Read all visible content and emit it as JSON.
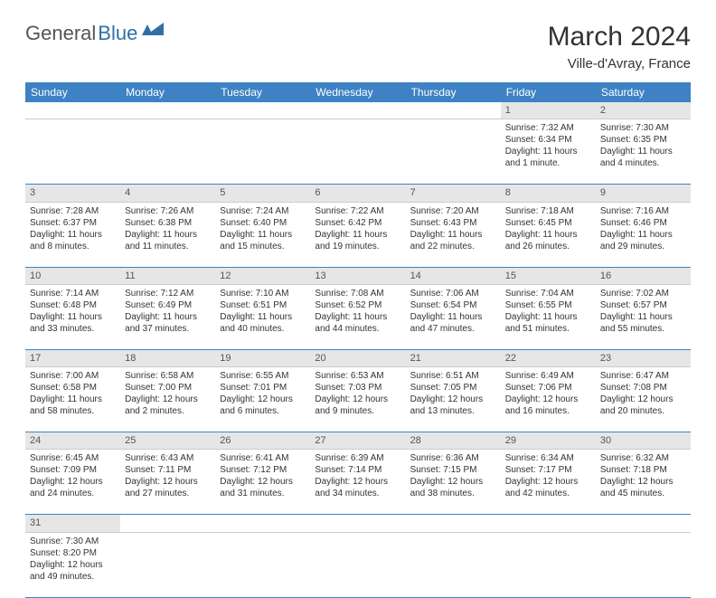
{
  "logo": {
    "text1": "General",
    "text2": "Blue"
  },
  "title": "March 2024",
  "location": "Ville-d'Avray, France",
  "colors": {
    "header_bg": "#3e82c4",
    "header_text": "#ffffff",
    "daynum_bg": "#e6e6e6",
    "border": "#3e82c4",
    "body_text": "#333333"
  },
  "weekdays": [
    "Sunday",
    "Monday",
    "Tuesday",
    "Wednesday",
    "Thursday",
    "Friday",
    "Saturday"
  ],
  "weeks": [
    [
      null,
      null,
      null,
      null,
      null,
      {
        "n": "1",
        "sr": "7:32 AM",
        "ss": "6:34 PM",
        "dl": "11 hours and 1 minute."
      },
      {
        "n": "2",
        "sr": "7:30 AM",
        "ss": "6:35 PM",
        "dl": "11 hours and 4 minutes."
      }
    ],
    [
      {
        "n": "3",
        "sr": "7:28 AM",
        "ss": "6:37 PM",
        "dl": "11 hours and 8 minutes."
      },
      {
        "n": "4",
        "sr": "7:26 AM",
        "ss": "6:38 PM",
        "dl": "11 hours and 11 minutes."
      },
      {
        "n": "5",
        "sr": "7:24 AM",
        "ss": "6:40 PM",
        "dl": "11 hours and 15 minutes."
      },
      {
        "n": "6",
        "sr": "7:22 AM",
        "ss": "6:42 PM",
        "dl": "11 hours and 19 minutes."
      },
      {
        "n": "7",
        "sr": "7:20 AM",
        "ss": "6:43 PM",
        "dl": "11 hours and 22 minutes."
      },
      {
        "n": "8",
        "sr": "7:18 AM",
        "ss": "6:45 PM",
        "dl": "11 hours and 26 minutes."
      },
      {
        "n": "9",
        "sr": "7:16 AM",
        "ss": "6:46 PM",
        "dl": "11 hours and 29 minutes."
      }
    ],
    [
      {
        "n": "10",
        "sr": "7:14 AM",
        "ss": "6:48 PM",
        "dl": "11 hours and 33 minutes."
      },
      {
        "n": "11",
        "sr": "7:12 AM",
        "ss": "6:49 PM",
        "dl": "11 hours and 37 minutes."
      },
      {
        "n": "12",
        "sr": "7:10 AM",
        "ss": "6:51 PM",
        "dl": "11 hours and 40 minutes."
      },
      {
        "n": "13",
        "sr": "7:08 AM",
        "ss": "6:52 PM",
        "dl": "11 hours and 44 minutes."
      },
      {
        "n": "14",
        "sr": "7:06 AM",
        "ss": "6:54 PM",
        "dl": "11 hours and 47 minutes."
      },
      {
        "n": "15",
        "sr": "7:04 AM",
        "ss": "6:55 PM",
        "dl": "11 hours and 51 minutes."
      },
      {
        "n": "16",
        "sr": "7:02 AM",
        "ss": "6:57 PM",
        "dl": "11 hours and 55 minutes."
      }
    ],
    [
      {
        "n": "17",
        "sr": "7:00 AM",
        "ss": "6:58 PM",
        "dl": "11 hours and 58 minutes."
      },
      {
        "n": "18",
        "sr": "6:58 AM",
        "ss": "7:00 PM",
        "dl": "12 hours and 2 minutes."
      },
      {
        "n": "19",
        "sr": "6:55 AM",
        "ss": "7:01 PM",
        "dl": "12 hours and 6 minutes."
      },
      {
        "n": "20",
        "sr": "6:53 AM",
        "ss": "7:03 PM",
        "dl": "12 hours and 9 minutes."
      },
      {
        "n": "21",
        "sr": "6:51 AM",
        "ss": "7:05 PM",
        "dl": "12 hours and 13 minutes."
      },
      {
        "n": "22",
        "sr": "6:49 AM",
        "ss": "7:06 PM",
        "dl": "12 hours and 16 minutes."
      },
      {
        "n": "23",
        "sr": "6:47 AM",
        "ss": "7:08 PM",
        "dl": "12 hours and 20 minutes."
      }
    ],
    [
      {
        "n": "24",
        "sr": "6:45 AM",
        "ss": "7:09 PM",
        "dl": "12 hours and 24 minutes."
      },
      {
        "n": "25",
        "sr": "6:43 AM",
        "ss": "7:11 PM",
        "dl": "12 hours and 27 minutes."
      },
      {
        "n": "26",
        "sr": "6:41 AM",
        "ss": "7:12 PM",
        "dl": "12 hours and 31 minutes."
      },
      {
        "n": "27",
        "sr": "6:39 AM",
        "ss": "7:14 PM",
        "dl": "12 hours and 34 minutes."
      },
      {
        "n": "28",
        "sr": "6:36 AM",
        "ss": "7:15 PM",
        "dl": "12 hours and 38 minutes."
      },
      {
        "n": "29",
        "sr": "6:34 AM",
        "ss": "7:17 PM",
        "dl": "12 hours and 42 minutes."
      },
      {
        "n": "30",
        "sr": "6:32 AM",
        "ss": "7:18 PM",
        "dl": "12 hours and 45 minutes."
      }
    ],
    [
      {
        "n": "31",
        "sr": "7:30 AM",
        "ss": "8:20 PM",
        "dl": "12 hours and 49 minutes."
      },
      null,
      null,
      null,
      null,
      null,
      null
    ]
  ],
  "labels": {
    "sunrise": "Sunrise:",
    "sunset": "Sunset:",
    "daylight": "Daylight:"
  }
}
